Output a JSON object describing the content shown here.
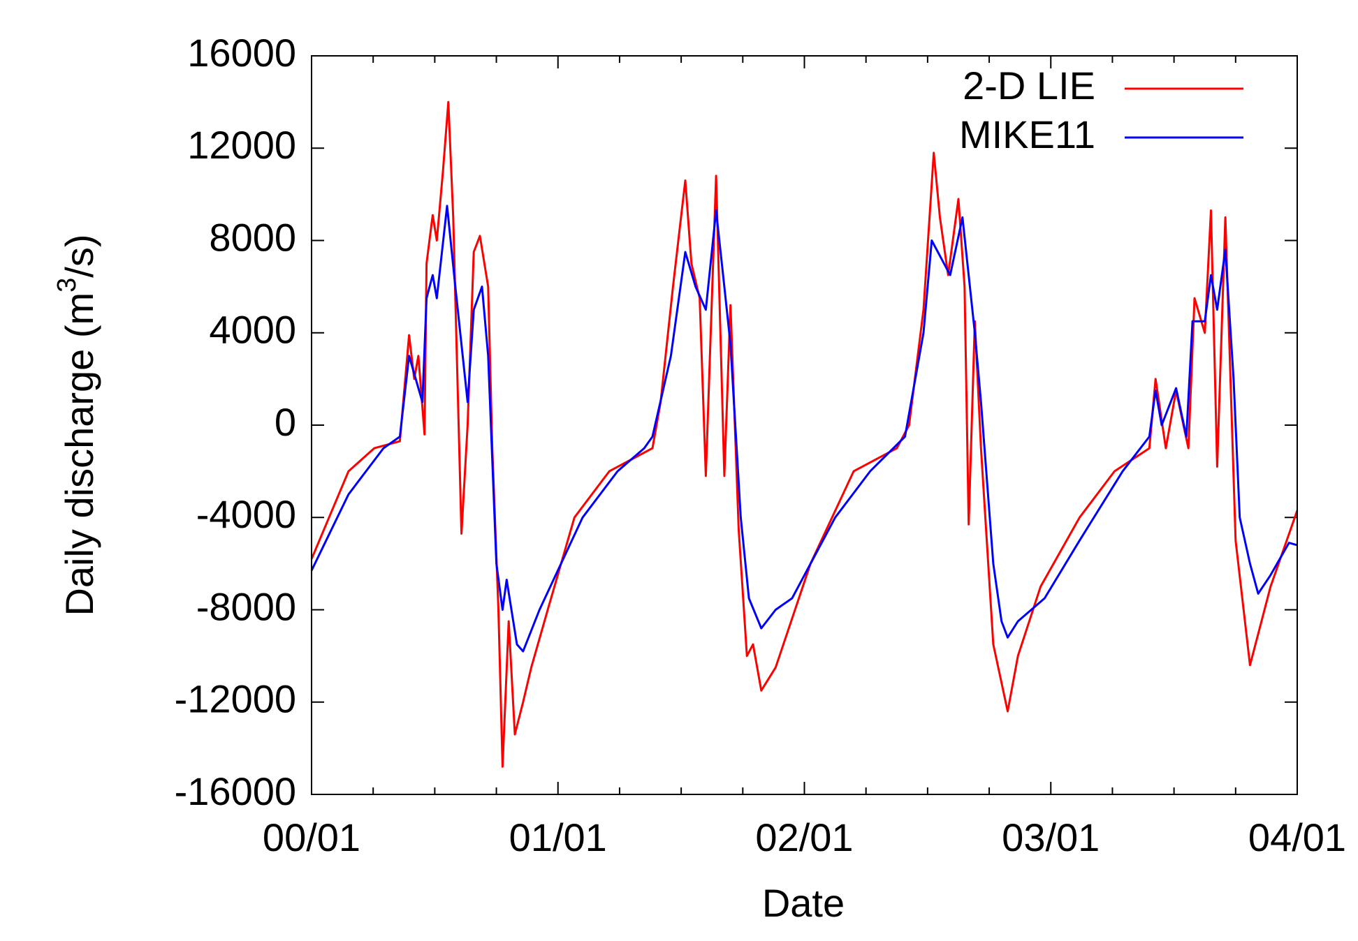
{
  "chart_data": {
    "type": "line",
    "xlabel": "Date",
    "ylabel": [
      "Daily discharge (m",
      "3",
      "/s)"
    ],
    "xlim": [
      0,
      48
    ],
    "xticks": [
      {
        "value": 0,
        "label": "00/01"
      },
      {
        "value": 12,
        "label": "01/01"
      },
      {
        "value": 24,
        "label": "02/01"
      },
      {
        "value": 36,
        "label": "03/01"
      },
      {
        "value": 48,
        "label": "04/01"
      }
    ],
    "xminorticks": [
      3,
      6,
      9,
      15,
      18,
      21,
      27,
      30,
      33,
      39,
      42,
      45
    ],
    "ylim": [
      -16000,
      16000
    ],
    "yticks": [
      -16000,
      -12000,
      -8000,
      -4000,
      0,
      4000,
      8000,
      12000,
      16000
    ],
    "legend": "upper right",
    "series": [
      {
        "name": "2-D LIE",
        "color": "#ff0000",
        "x": [
          0,
          1.8,
          3.05,
          4.3,
          4.75,
          5.0,
          5.2,
          5.5,
          5.6,
          5.9,
          6.1,
          6.4,
          6.66,
          6.9,
          7.3,
          7.6,
          7.9,
          8.2,
          8.6,
          8.8,
          9.1,
          9.3,
          9.6,
          9.9,
          10.3,
          10.7,
          11.5,
          12.8,
          14.5,
          16.6,
          17.0,
          17.6,
          18.2,
          18.5,
          18.9,
          19.2,
          19.7,
          20.1,
          20.4,
          20.8,
          21.2,
          21.5,
          21.9,
          22.6,
          24.3,
          26.4,
          28.5,
          29.1,
          29.8,
          30.3,
          30.6,
          31.0,
          31.5,
          31.8,
          32.0,
          32.3,
          32.6,
          33.2,
          33.9,
          34.4,
          35.5,
          37.4,
          39.1,
          40.8,
          41.1,
          41.6,
          42.1,
          42.7,
          43.0,
          43.5,
          43.8,
          44.1,
          44.5,
          45.0,
          45.7,
          46.7,
          48
        ],
        "values": [
          -5800,
          -2000,
          -1000,
          -700,
          3900,
          2000,
          3000,
          -400,
          7000,
          9100,
          8000,
          11000,
          14000,
          9000,
          -4700,
          0,
          7500,
          8200,
          6000,
          -1000,
          -8000,
          -14800,
          -8500,
          -13400,
          -12000,
          -10500,
          -8000,
          -4000,
          -2000,
          -1000,
          1000,
          6000,
          10600,
          7000,
          5500,
          -2200,
          10800,
          -2200,
          5200,
          -4500,
          -10000,
          -9500,
          -11500,
          -10500,
          -6000,
          -2000,
          -1000,
          0,
          5000,
          11800,
          9000,
          6500,
          9800,
          6000,
          -4300,
          4500,
          -1000,
          -9500,
          -12400,
          -10000,
          -7000,
          -4000,
          -2000,
          -1000,
          2000,
          -1000,
          1500,
          -1000,
          5500,
          4000,
          9300,
          -1800,
          9000,
          -5000,
          -10400,
          -7000,
          -3700
        ]
      },
      {
        "name": "MIKE11",
        "color": "#0000ff",
        "x": [
          0,
          1.8,
          3.5,
          4.3,
          4.75,
          5.4,
          5.6,
          5.9,
          6.1,
          6.6,
          7.0,
          7.6,
          7.9,
          8.3,
          8.6,
          9.0,
          9.3,
          9.5,
          10.0,
          10.3,
          11.1,
          13.2,
          14.9,
          16.2,
          16.6,
          17.5,
          18.2,
          18.7,
          19.2,
          19.7,
          20.1,
          20.4,
          20.9,
          21.3,
          21.9,
          22.6,
          23.4,
          25.5,
          27.2,
          28.9,
          29.8,
          30.2,
          30.8,
          31.1,
          31.7,
          32.3,
          32.6,
          33.2,
          33.6,
          33.9,
          34.4,
          35.7,
          37.4,
          39.5,
          40.8,
          41.1,
          41.4,
          42.1,
          42.6,
          42.9,
          43.5,
          43.8,
          44.1,
          44.5,
          44.9,
          45.2,
          45.7,
          46.1,
          46.7,
          47.6,
          48
        ],
        "values": [
          -6300,
          -3000,
          -1000,
          -500,
          3000,
          1000,
          5500,
          6500,
          5500,
          9500,
          6000,
          1000,
          5000,
          6000,
          3000,
          -6000,
          -8000,
          -6700,
          -9500,
          -9800,
          -8000,
          -4000,
          -2000,
          -1000,
          -500,
          3000,
          7500,
          6000,
          5000,
          9300,
          6000,
          3500,
          -4000,
          -7500,
          -8800,
          -8000,
          -7500,
          -4000,
          -2000,
          -500,
          4000,
          8000,
          7000,
          6500,
          9000,
          4000,
          1000,
          -6000,
          -8500,
          -9200,
          -8500,
          -7500,
          -5000,
          -2000,
          -500,
          1500,
          0,
          1600,
          -500,
          4500,
          4500,
          6500,
          5000,
          7600,
          2000,
          -4000,
          -6000,
          -7300,
          -6500,
          -5100,
          -5200
        ]
      }
    ]
  }
}
